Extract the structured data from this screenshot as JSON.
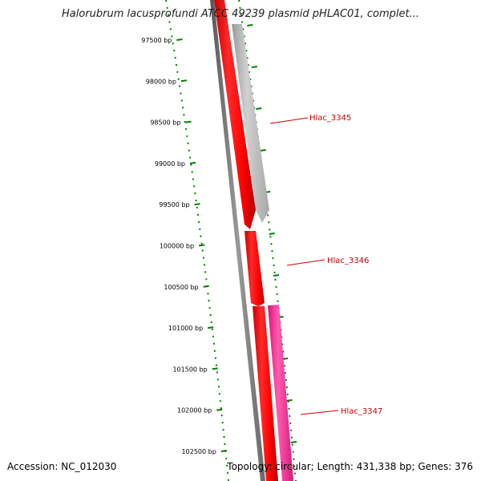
{
  "title": "Halorubrum lacusprofundi ATCC 49239 plasmid pHLAC01, complet...",
  "footer": {
    "accession": "Accession: NC_012030",
    "summary": "Topology: circular; Length: 431,338 bp; Genes: 376"
  },
  "ruler_ticks": [
    "97500 bp",
    "98000 bp",
    "98500 bp",
    "99000 bp",
    "99500 bp",
    "100000 bp",
    "100500 bp",
    "101000 bp",
    "101500 bp",
    "102000 bp",
    "102500 bp"
  ],
  "genes": [
    {
      "name": "Hlac_3345"
    },
    {
      "name": "Hlac_3346"
    },
    {
      "name": "Hlac_3347"
    }
  ],
  "colors": {
    "title": "#222222",
    "axis_ticks": "#008000",
    "backbone": "#777777",
    "forward_gene": "#ff0000",
    "reverse_gene_grey": "#b4b4b4",
    "reverse_gene_pink": "#ff1493",
    "gene_label": "#cc0000"
  }
}
